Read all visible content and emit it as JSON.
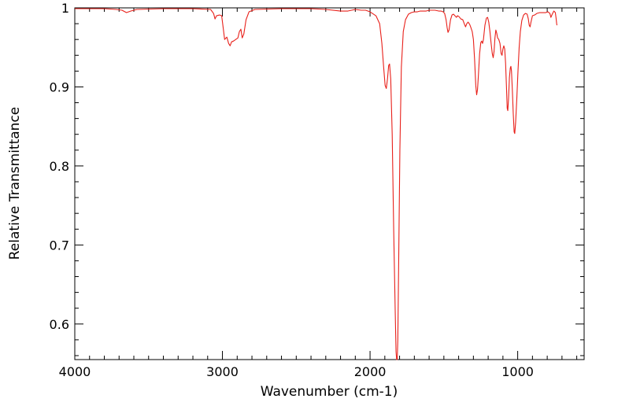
{
  "chart_data": {
    "type": "line",
    "title": "",
    "xlabel": "Wavenumber (cm-1)",
    "ylabel": "Relative Transmittance",
    "xlim": [
      4000,
      550
    ],
    "ylim": [
      0.555,
      1.0
    ],
    "x_ticks": [
      4000,
      3000,
      2000,
      1000
    ],
    "x_tick_labels": [
      "4000",
      "3000",
      "2000",
      "1000"
    ],
    "y_ticks": [
      0.6,
      0.7,
      0.8,
      0.9,
      1.0
    ],
    "y_tick_labels": [
      "0.6",
      "0.7",
      "0.8",
      "0.9",
      "1"
    ],
    "grid": false,
    "legend": false,
    "color": "#e8201a",
    "series": [
      {
        "points": [
          [
            4000,
            0.999
          ],
          [
            3800,
            0.999
          ],
          [
            3720,
            0.998
          ],
          [
            3680,
            0.997
          ],
          [
            3650,
            0.994
          ],
          [
            3620,
            0.996
          ],
          [
            3580,
            0.998
          ],
          [
            3400,
            0.999
          ],
          [
            3200,
            0.999
          ],
          [
            3080,
            0.998
          ],
          [
            3060,
            0.993
          ],
          [
            3050,
            0.986
          ],
          [
            3040,
            0.99
          ],
          [
            3020,
            0.991
          ],
          [
            3005,
            0.99
          ],
          [
            2995,
            0.975
          ],
          [
            2985,
            0.96
          ],
          [
            2970,
            0.963
          ],
          [
            2958,
            0.955
          ],
          [
            2948,
            0.952
          ],
          [
            2938,
            0.957
          ],
          [
            2925,
            0.958
          ],
          [
            2910,
            0.96
          ],
          [
            2895,
            0.962
          ],
          [
            2885,
            0.97
          ],
          [
            2875,
            0.973
          ],
          [
            2866,
            0.962
          ],
          [
            2855,
            0.967
          ],
          [
            2840,
            0.985
          ],
          [
            2820,
            0.995
          ],
          [
            2780,
            0.998
          ],
          [
            2600,
            0.999
          ],
          [
            2400,
            0.999
          ],
          [
            2300,
            0.998
          ],
          [
            2200,
            0.996
          ],
          [
            2150,
            0.996
          ],
          [
            2100,
            0.998
          ],
          [
            2060,
            0.997
          ],
          [
            2030,
            0.997
          ],
          [
            2000,
            0.995
          ],
          [
            1960,
            0.99
          ],
          [
            1935,
            0.98
          ],
          [
            1920,
            0.955
          ],
          [
            1908,
            0.925
          ],
          [
            1898,
            0.902
          ],
          [
            1890,
            0.898
          ],
          [
            1882,
            0.91
          ],
          [
            1874,
            0.927
          ],
          [
            1868,
            0.929
          ],
          [
            1860,
            0.91
          ],
          [
            1850,
            0.84
          ],
          [
            1840,
            0.72
          ],
          [
            1830,
            0.62
          ],
          [
            1824,
            0.565
          ],
          [
            1820,
            0.555
          ],
          [
            1816,
            0.555
          ],
          [
            1812,
            0.58
          ],
          [
            1806,
            0.68
          ],
          [
            1798,
            0.82
          ],
          [
            1788,
            0.925
          ],
          [
            1775,
            0.97
          ],
          [
            1760,
            0.985
          ],
          [
            1740,
            0.992
          ],
          [
            1720,
            0.994
          ],
          [
            1700,
            0.995
          ],
          [
            1680,
            0.995
          ],
          [
            1660,
            0.996
          ],
          [
            1640,
            0.996
          ],
          [
            1620,
            0.996
          ],
          [
            1600,
            0.997
          ],
          [
            1560,
            0.997
          ],
          [
            1535,
            0.996
          ],
          [
            1520,
            0.996
          ],
          [
            1505,
            0.995
          ],
          [
            1495,
            0.993
          ],
          [
            1485,
            0.985
          ],
          [
            1478,
            0.975
          ],
          [
            1472,
            0.969
          ],
          [
            1465,
            0.972
          ],
          [
            1455,
            0.985
          ],
          [
            1445,
            0.991
          ],
          [
            1435,
            0.992
          ],
          [
            1425,
            0.99
          ],
          [
            1415,
            0.988
          ],
          [
            1408,
            0.99
          ],
          [
            1398,
            0.989
          ],
          [
            1385,
            0.986
          ],
          [
            1372,
            0.985
          ],
          [
            1360,
            0.979
          ],
          [
            1353,
            0.976
          ],
          [
            1345,
            0.98
          ],
          [
            1336,
            0.982
          ],
          [
            1325,
            0.979
          ],
          [
            1317,
            0.975
          ],
          [
            1308,
            0.97
          ],
          [
            1300,
            0.96
          ],
          [
            1292,
            0.935
          ],
          [
            1284,
            0.902
          ],
          [
            1278,
            0.89
          ],
          [
            1272,
            0.897
          ],
          [
            1266,
            0.915
          ],
          [
            1258,
            0.942
          ],
          [
            1250,
            0.956
          ],
          [
            1244,
            0.958
          ],
          [
            1238,
            0.955
          ],
          [
            1232,
            0.96
          ],
          [
            1222,
            0.978
          ],
          [
            1212,
            0.987
          ],
          [
            1204,
            0.988
          ],
          [
            1196,
            0.982
          ],
          [
            1188,
            0.97
          ],
          [
            1180,
            0.955
          ],
          [
            1172,
            0.942
          ],
          [
            1166,
            0.937
          ],
          [
            1160,
            0.945
          ],
          [
            1154,
            0.962
          ],
          [
            1148,
            0.972
          ],
          [
            1142,
            0.968
          ],
          [
            1136,
            0.962
          ],
          [
            1128,
            0.96
          ],
          [
            1120,
            0.955
          ],
          [
            1112,
            0.942
          ],
          [
            1106,
            0.94
          ],
          [
            1100,
            0.948
          ],
          [
            1094,
            0.952
          ],
          [
            1088,
            0.948
          ],
          [
            1082,
            0.93
          ],
          [
            1076,
            0.9
          ],
          [
            1071,
            0.873
          ],
          [
            1067,
            0.87
          ],
          [
            1062,
            0.885
          ],
          [
            1056,
            0.912
          ],
          [
            1050,
            0.924
          ],
          [
            1046,
            0.926
          ],
          [
            1042,
            0.92
          ],
          [
            1036,
            0.895
          ],
          [
            1030,
            0.866
          ],
          [
            1024,
            0.843
          ],
          [
            1020,
            0.841
          ],
          [
            1014,
            0.855
          ],
          [
            1006,
            0.885
          ],
          [
            998,
            0.92
          ],
          [
            990,
            0.95
          ],
          [
            982,
            0.97
          ],
          [
            972,
            0.984
          ],
          [
            960,
            0.991
          ],
          [
            948,
            0.993
          ],
          [
            936,
            0.992
          ],
          [
            928,
            0.986
          ],
          [
            922,
            0.978
          ],
          [
            916,
            0.976
          ],
          [
            910,
            0.982
          ],
          [
            900,
            0.99
          ],
          [
            885,
            0.991
          ],
          [
            870,
            0.993
          ],
          [
            850,
            0.994
          ],
          [
            830,
            0.994
          ],
          [
            810,
            0.994
          ],
          [
            795,
            0.995
          ],
          [
            782,
            0.993
          ],
          [
            775,
            0.988
          ],
          [
            766,
            0.992
          ],
          [
            755,
            0.996
          ],
          [
            745,
            0.994
          ],
          [
            740,
            0.987
          ],
          [
            736,
            0.98
          ],
          [
            734,
            0.978
          ]
        ]
      }
    ]
  }
}
